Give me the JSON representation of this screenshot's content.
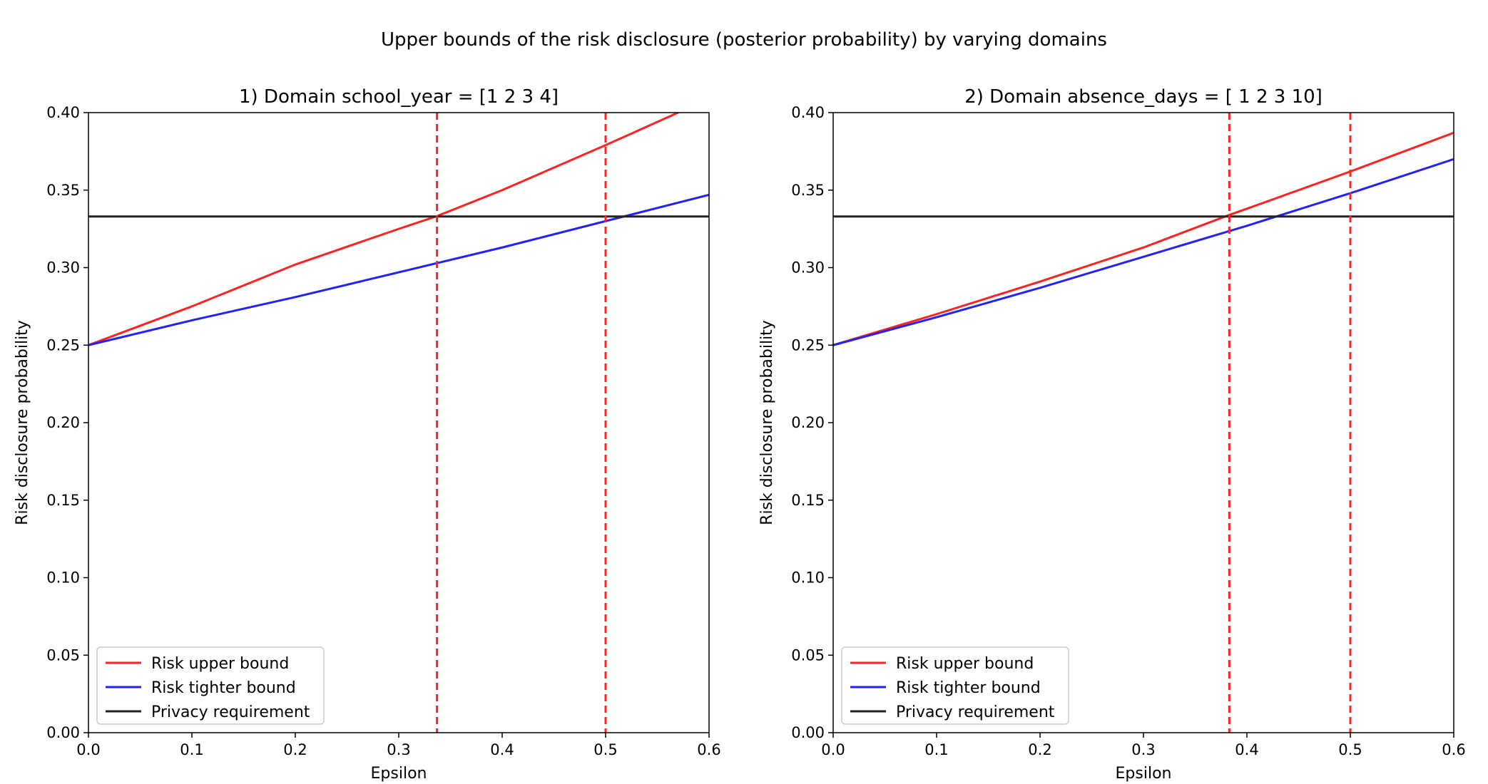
{
  "figure": {
    "suptitle": "Upper bounds of the risk disclosure (posterior probability) by varying domains"
  },
  "chart_data": [
    {
      "type": "line",
      "title": "1) Domain school_year = [1 2 3 4]",
      "xlabel": "Epsilon",
      "ylabel": "Risk disclosure probability",
      "xlim": [
        0.0,
        0.6
      ],
      "ylim": [
        0.0,
        0.4
      ],
      "xticks": [
        "0.0",
        "0.1",
        "0.2",
        "0.3",
        "0.4",
        "0.5",
        "0.6"
      ],
      "yticks": [
        "0.00",
        "0.05",
        "0.10",
        "0.15",
        "0.20",
        "0.25",
        "0.30",
        "0.35",
        "0.40"
      ],
      "grid": false,
      "legend_position": "lower-left",
      "series": [
        {
          "name": "Risk upper bound",
          "color": "#ff2222",
          "x": [
            0.0,
            0.1,
            0.2,
            0.3,
            0.336,
            0.4,
            0.5,
            0.6
          ],
          "y": [
            0.25,
            0.275,
            0.302,
            0.325,
            0.333,
            0.35,
            0.379,
            0.409
          ]
        },
        {
          "name": "Risk tighter bound",
          "color": "#2222ff",
          "x": [
            0.0,
            0.1,
            0.2,
            0.3,
            0.4,
            0.5,
            0.6
          ],
          "y": [
            0.25,
            0.266,
            0.281,
            0.297,
            0.313,
            0.33,
            0.347
          ]
        },
        {
          "name": "Privacy requirement",
          "color": "#222222",
          "x": [
            0.0,
            0.6
          ],
          "y": [
            0.333,
            0.333
          ]
        }
      ],
      "vlines": [
        {
          "x": 0.337,
          "color": "#ff2222",
          "style": "dashed"
        },
        {
          "x": 0.5,
          "color": "#ff2222",
          "style": "dashed"
        }
      ]
    },
    {
      "type": "line",
      "title": "2) Domain absence_days = [ 1  2  3 10]",
      "xlabel": "Epsilon",
      "ylabel": "Risk disclosure probability",
      "xlim": [
        0.0,
        0.6
      ],
      "ylim": [
        0.0,
        0.4
      ],
      "xticks": [
        "0.0",
        "0.1",
        "0.2",
        "0.3",
        "0.4",
        "0.5",
        "0.6"
      ],
      "yticks": [
        "0.00",
        "0.05",
        "0.10",
        "0.15",
        "0.20",
        "0.25",
        "0.30",
        "0.35",
        "0.40"
      ],
      "grid": false,
      "legend_position": "lower-left",
      "series": [
        {
          "name": "Risk upper bound",
          "color": "#ff2222",
          "x": [
            0.0,
            0.1,
            0.2,
            0.3,
            0.383,
            0.4,
            0.5,
            0.6
          ],
          "y": [
            0.25,
            0.27,
            0.291,
            0.313,
            0.334,
            0.338,
            0.362,
            0.387
          ]
        },
        {
          "name": "Risk tighter bound",
          "color": "#2222ff",
          "x": [
            0.0,
            0.1,
            0.2,
            0.3,
            0.4,
            0.5,
            0.6
          ],
          "y": [
            0.25,
            0.268,
            0.287,
            0.307,
            0.327,
            0.348,
            0.37
          ]
        },
        {
          "name": "Privacy requirement",
          "color": "#222222",
          "x": [
            0.0,
            0.6
          ],
          "y": [
            0.333,
            0.333
          ]
        }
      ],
      "vlines": [
        {
          "x": 0.383,
          "color": "#ff2222",
          "style": "dashed"
        },
        {
          "x": 0.5,
          "color": "#ff2222",
          "style": "dashed"
        }
      ]
    }
  ]
}
